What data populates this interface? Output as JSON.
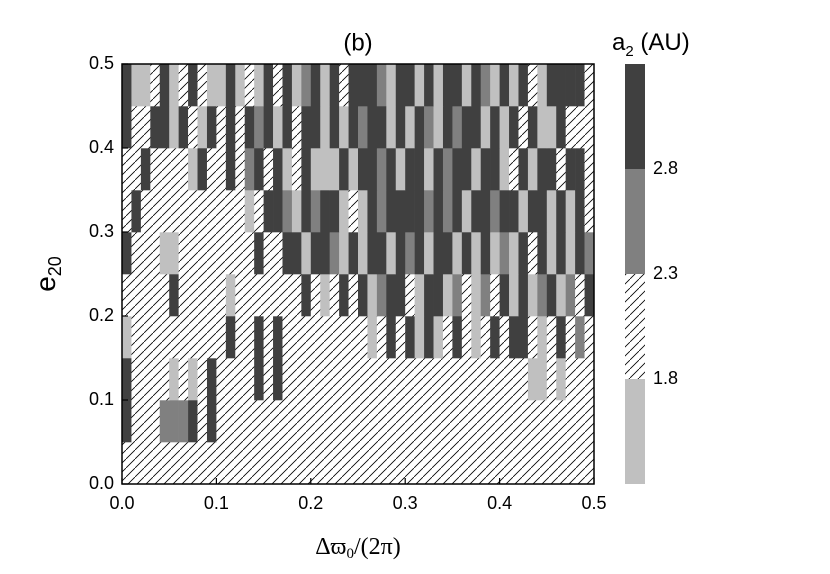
{
  "chart_data": {
    "type": "heatmap",
    "title": "(b)",
    "x_label": {
      "main": "Δϖ",
      "sub": "0",
      "tail": "/(2π)"
    },
    "y_label": {
      "main": "e",
      "sub": "20"
    },
    "colorbar_label": {
      "main": "a",
      "sub": "2",
      "tail": " (AU)"
    },
    "xlim": [
      0,
      0.5
    ],
    "ylim": [
      0,
      0.5
    ],
    "xticks": [
      {
        "value": 0,
        "label": "0.0"
      },
      0.1,
      0.2,
      0.3,
      0.4,
      0.5
    ],
    "yticks": [
      {
        "value": 0,
        "label": "0.0"
      },
      0.1,
      0.2,
      0.3,
      0.4,
      0.5
    ],
    "levels": [
      1.3,
      1.8,
      2.3,
      2.8,
      3.3
    ],
    "level_fills": [
      "#c0c0c0",
      "#ffffff",
      "#808080",
      "#404040"
    ],
    "hatched_levels": [
      1
    ],
    "colorbar_ticks": [
      1.8,
      2.3,
      2.8
    ],
    "z": [
      [
        2.05,
        2.05,
        2.05,
        2.05,
        2.05,
        2.05,
        2.05,
        2.05,
        2.05,
        2.05,
        2.05,
        2.05,
        2.05,
        2.05,
        2.05,
        2.05,
        2.05,
        2.05,
        2.05,
        2.05,
        2.05,
        2.05,
        2.05,
        2.05,
        2.05,
        2.05,
        2.05,
        2.05,
        2.05,
        2.05,
        2.05,
        2.05,
        2.05,
        2.05,
        2.05,
        2.05,
        2.05,
        2.05,
        2.05,
        2.05,
        2.05,
        2.05,
        2.05,
        2.05,
        2.05,
        2.05,
        2.05,
        2.05,
        2.05,
        2.05
      ],
      [
        3.05,
        2.05,
        2.05,
        2.05,
        2.55,
        2.55,
        2.55,
        3.05,
        2.05,
        3.05,
        2.05,
        2.05,
        2.05,
        2.05,
        2.05,
        2.05,
        2.05,
        2.05,
        2.05,
        2.05,
        2.05,
        2.05,
        2.05,
        2.05,
        2.05,
        2.05,
        2.05,
        2.05,
        2.05,
        2.05,
        2.05,
        2.05,
        2.05,
        2.05,
        2.05,
        2.05,
        2.05,
        2.05,
        2.05,
        2.05,
        2.05,
        2.05,
        2.05,
        2.05,
        2.05,
        2.05,
        2.05,
        2.05,
        2.05,
        2.05
      ],
      [
        3.05,
        2.05,
        2.05,
        2.05,
        2.05,
        1.55,
        2.05,
        1.55,
        2.05,
        3.05,
        2.05,
        2.05,
        2.05,
        2.05,
        3.05,
        2.05,
        3.05,
        2.05,
        2.05,
        2.05,
        2.05,
        2.05,
        2.05,
        2.05,
        2.05,
        2.05,
        2.05,
        2.05,
        2.05,
        2.05,
        2.05,
        2.05,
        2.05,
        2.05,
        2.05,
        2.05,
        2.05,
        2.05,
        2.05,
        2.05,
        2.05,
        2.05,
        2.05,
        1.55,
        1.55,
        2.05,
        1.55,
        2.05,
        2.05,
        2.05
      ],
      [
        1.55,
        2.05,
        2.05,
        2.05,
        2.05,
        2.05,
        2.05,
        2.05,
        2.05,
        2.05,
        2.05,
        3.05,
        2.05,
        2.05,
        3.05,
        2.05,
        3.05,
        2.05,
        2.05,
        2.05,
        2.05,
        2.05,
        2.05,
        2.05,
        2.05,
        2.05,
        1.55,
        2.05,
        3.05,
        2.05,
        3.05,
        1.55,
        3.05,
        1.55,
        2.05,
        3.05,
        2.05,
        1.55,
        2.05,
        3.05,
        2.05,
        3.05,
        3.05,
        2.05,
        1.55,
        2.05,
        3.05,
        2.05,
        2.55,
        2.05
      ],
      [
        2.05,
        2.05,
        2.05,
        2.05,
        2.05,
        3.05,
        2.05,
        2.05,
        2.05,
        2.05,
        2.05,
        1.55,
        2.05,
        2.05,
        2.05,
        2.05,
        2.05,
        2.05,
        2.05,
        3.05,
        2.05,
        1.55,
        2.05,
        3.05,
        2.05,
        3.05,
        1.55,
        2.55,
        3.05,
        3.05,
        2.05,
        1.55,
        3.05,
        3.05,
        1.55,
        2.55,
        2.05,
        1.55,
        2.55,
        2.05,
        3.05,
        1.55,
        3.05,
        1.55,
        2.55,
        3.05,
        1.55,
        2.55,
        2.05,
        3.05
      ],
      [
        3.05,
        2.05,
        2.05,
        2.05,
        1.55,
        1.55,
        2.05,
        2.05,
        2.05,
        2.05,
        2.05,
        2.05,
        2.05,
        2.05,
        3.05,
        2.05,
        2.05,
        3.05,
        3.05,
        1.55,
        3.05,
        3.05,
        2.55,
        1.55,
        3.05,
        1.55,
        3.05,
        3.05,
        1.55,
        3.05,
        2.55,
        3.05,
        1.55,
        3.05,
        3.05,
        1.55,
        3.05,
        1.55,
        3.05,
        1.55,
        2.55,
        1.55,
        3.05,
        2.05,
        3.05,
        1.55,
        3.05,
        1.55,
        3.05,
        2.55
      ],
      [
        2.05,
        3.05,
        2.05,
        2.05,
        2.05,
        2.05,
        2.05,
        2.05,
        2.05,
        2.05,
        2.05,
        2.05,
        2.05,
        1.55,
        2.05,
        3.05,
        3.05,
        2.55,
        1.55,
        3.05,
        2.55,
        3.05,
        3.05,
        1.55,
        2.05,
        1.55,
        3.05,
        2.55,
        3.05,
        3.05,
        3.05,
        3.05,
        2.55,
        3.05,
        2.55,
        3.05,
        1.55,
        3.05,
        3.05,
        2.55,
        3.05,
        3.05,
        1.55,
        3.05,
        3.05,
        1.55,
        3.05,
        1.55,
        3.05,
        2.05
      ],
      [
        2.05,
        2.05,
        3.05,
        2.05,
        2.05,
        2.05,
        2.05,
        1.55,
        3.05,
        2.05,
        2.05,
        3.05,
        2.05,
        2.55,
        3.05,
        2.05,
        3.05,
        1.55,
        2.05,
        3.05,
        1.55,
        1.55,
        1.55,
        3.05,
        1.55,
        3.05,
        3.05,
        2.55,
        3.05,
        1.55,
        3.05,
        3.05,
        1.55,
        3.05,
        2.55,
        3.05,
        3.05,
        1.55,
        3.05,
        3.05,
        1.55,
        2.05,
        3.05,
        1.55,
        3.05,
        3.05,
        2.05,
        3.05,
        3.05,
        2.05
      ],
      [
        3.05,
        2.05,
        2.05,
        3.05,
        3.05,
        1.55,
        3.05,
        2.05,
        1.55,
        3.05,
        2.05,
        3.05,
        2.05,
        3.05,
        2.55,
        3.05,
        1.55,
        3.05,
        2.05,
        3.05,
        3.05,
        1.55,
        3.05,
        1.55,
        3.05,
        2.55,
        3.05,
        3.05,
        1.55,
        3.05,
        1.55,
        3.05,
        2.55,
        1.55,
        3.05,
        2.55,
        3.05,
        3.05,
        1.55,
        3.05,
        1.55,
        3.05,
        2.05,
        3.05,
        1.55,
        1.55,
        3.05,
        2.05,
        2.05,
        2.05
      ],
      [
        3.05,
        1.55,
        1.55,
        2.05,
        3.05,
        1.55,
        2.05,
        3.05,
        2.05,
        1.55,
        1.55,
        3.05,
        1.55,
        2.05,
        1.55,
        3.05,
        2.05,
        3.05,
        1.55,
        2.55,
        3.05,
        1.55,
        3.05,
        2.05,
        3.05,
        3.05,
        3.05,
        2.55,
        1.55,
        3.05,
        3.05,
        1.55,
        3.05,
        1.55,
        3.05,
        3.05,
        1.55,
        3.05,
        2.55,
        1.55,
        3.05,
        1.55,
        3.05,
        2.05,
        1.55,
        3.05,
        3.05,
        3.05,
        3.05,
        2.05
      ]
    ]
  }
}
